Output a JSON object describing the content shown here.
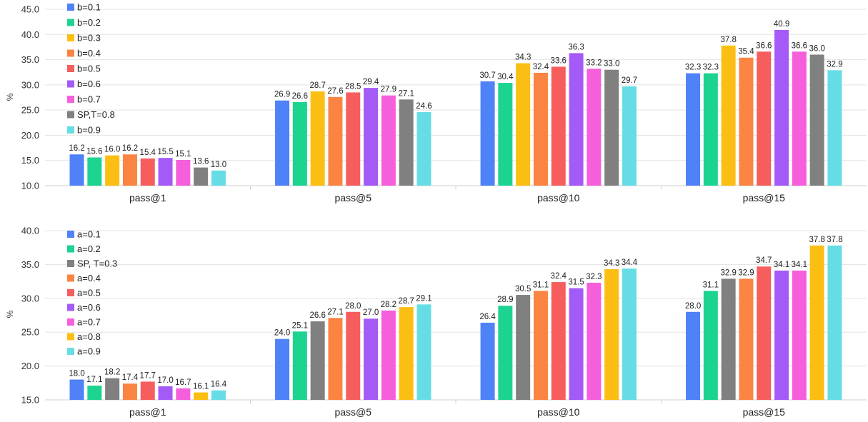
{
  "chart_data": [
    {
      "type": "bar",
      "ylabel": "%",
      "ylim": [
        10,
        45
      ],
      "yticks": [
        "10.0",
        "15.0",
        "20.0",
        "25.0",
        "30.0",
        "35.0",
        "40.0",
        "45.0"
      ],
      "grid": true,
      "legend_position": "top-left",
      "categories": [
        "pass@1",
        "pass@5",
        "pass@10",
        "pass@15"
      ],
      "series": [
        {
          "name": "b=0.1",
          "color": "#4f81f7",
          "values": [
            16.2,
            26.9,
            30.7,
            32.3
          ]
        },
        {
          "name": "b=0.2",
          "color": "#1dd390",
          "values": [
            15.6,
            26.6,
            30.4,
            32.3
          ]
        },
        {
          "name": "b=0.3",
          "color": "#fbbf14",
          "values": [
            16.0,
            28.7,
            34.3,
            37.8
          ]
        },
        {
          "name": "b=0.4",
          "color": "#fb8443",
          "values": [
            16.2,
            27.6,
            32.4,
            35.4
          ]
        },
        {
          "name": "b=0.5",
          "color": "#f65e5e",
          "values": [
            15.4,
            28.5,
            33.6,
            36.6
          ]
        },
        {
          "name": "b=0.6",
          "color": "#a45af7",
          "values": [
            15.5,
            29.4,
            36.3,
            40.9
          ]
        },
        {
          "name": "b=0.7",
          "color": "#f65fdc",
          "values": [
            15.1,
            27.9,
            33.2,
            36.6
          ]
        },
        {
          "name": "SP,T=0.8",
          "color": "#808080",
          "values": [
            13.6,
            27.1,
            33.0,
            36.0
          ]
        },
        {
          "name": "b=0.9",
          "color": "#66dde5",
          "values": [
            13.0,
            24.6,
            29.7,
            32.9
          ]
        }
      ]
    },
    {
      "type": "bar",
      "ylabel": "%",
      "ylim": [
        15,
        40
      ],
      "yticks": [
        "15.0",
        "20.0",
        "25.0",
        "30.0",
        "35.0",
        "40.0"
      ],
      "grid": true,
      "legend_position": "top-left",
      "categories": [
        "pass@1",
        "pass@5",
        "pass@10",
        "pass@15"
      ],
      "series": [
        {
          "name": "a=0.1",
          "color": "#4f81f7",
          "values": [
            18.0,
            24.0,
            26.4,
            28.0
          ]
        },
        {
          "name": "a=0.2",
          "color": "#1dd390",
          "values": [
            17.1,
            25.1,
            28.9,
            31.1
          ]
        },
        {
          "name": "SP, T=0.3",
          "color": "#808080",
          "values": [
            18.2,
            26.6,
            30.5,
            32.9
          ]
        },
        {
          "name": "a=0.4",
          "color": "#fb8443",
          "values": [
            17.4,
            27.1,
            31.1,
            32.9
          ]
        },
        {
          "name": "a=0.5",
          "color": "#f65e5e",
          "values": [
            17.7,
            28.0,
            32.4,
            34.7
          ]
        },
        {
          "name": "a=0.6",
          "color": "#a45af7",
          "values": [
            17.0,
            27.0,
            31.5,
            34.1
          ]
        },
        {
          "name": "a=0.7",
          "color": "#f65fdc",
          "values": [
            16.7,
            28.2,
            32.3,
            34.1
          ]
        },
        {
          "name": "a=0.8",
          "color": "#fbbf14",
          "values": [
            16.1,
            28.7,
            34.3,
            37.8
          ]
        },
        {
          "name": "a=0.9",
          "color": "#66dde5",
          "values": [
            16.4,
            29.1,
            34.4,
            37.8
          ]
        }
      ]
    }
  ]
}
